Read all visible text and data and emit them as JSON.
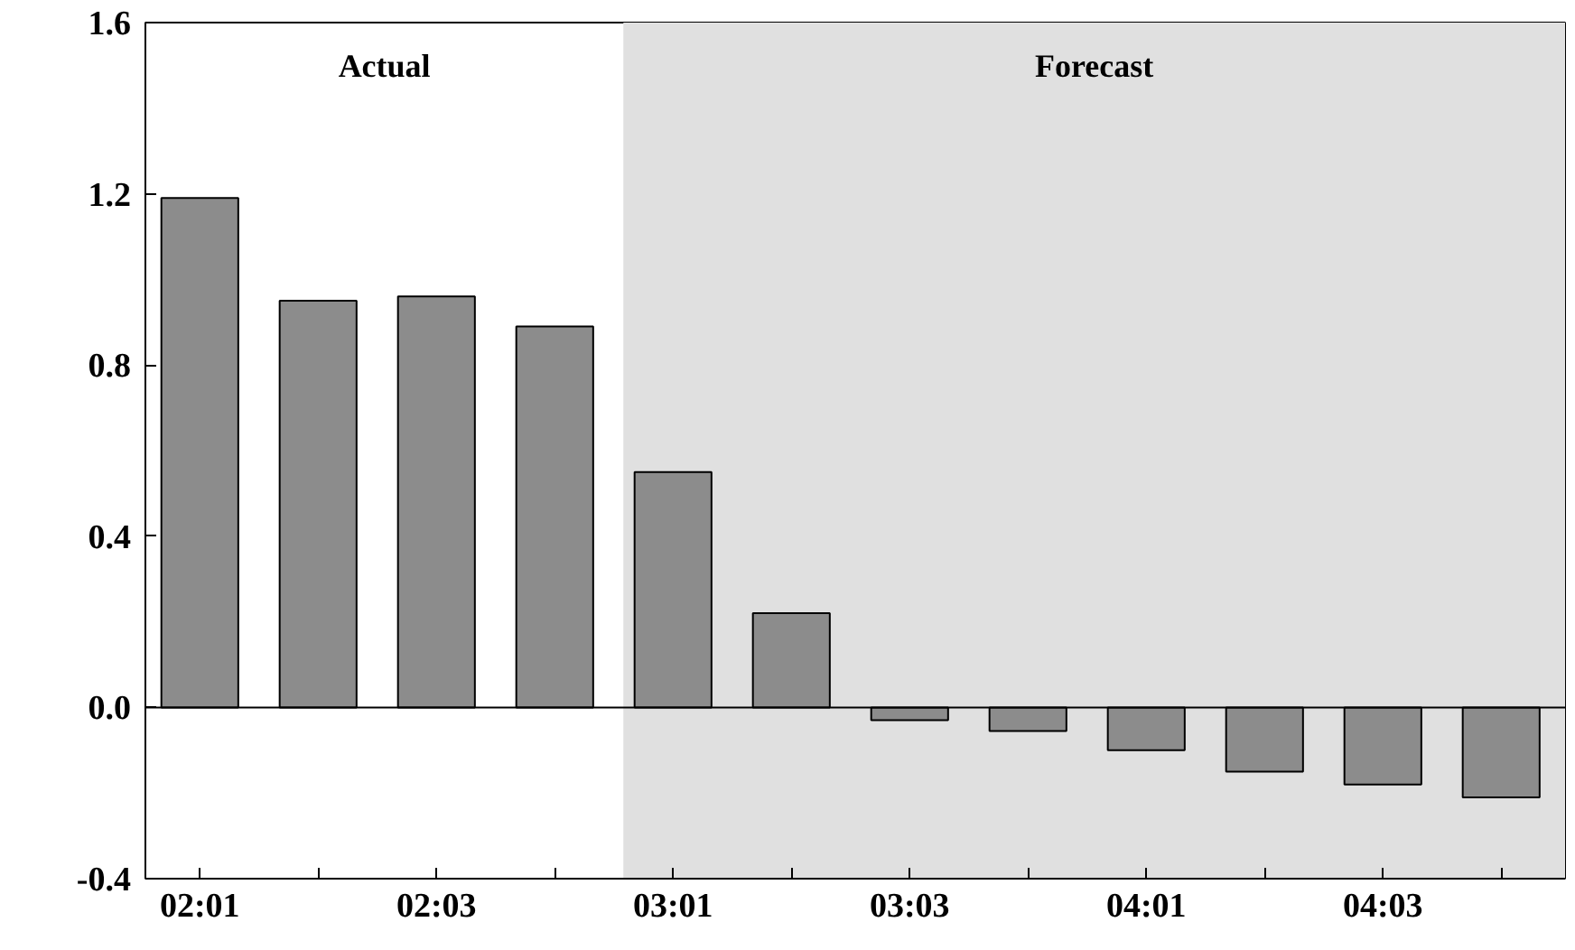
{
  "chart_data": {
    "type": "bar",
    "categories": [
      "02:01",
      null,
      "02:03",
      null,
      "03:01",
      null,
      "03:03",
      null,
      "04:01",
      null,
      "04:03",
      null
    ],
    "values": [
      1.19,
      0.95,
      0.96,
      0.89,
      0.55,
      0.22,
      -0.03,
      -0.055,
      -0.1,
      -0.15,
      -0.18,
      -0.21
    ],
    "color": "#8c8c8c",
    "ylim": [
      -0.4,
      1.6
    ],
    "yticks": [
      {
        "value": -0.4,
        "label": "-0.4"
      },
      {
        "value": 0,
        "label": "0.0"
      },
      0.4,
      0.8,
      1.2,
      1.6
    ],
    "grid": false,
    "ref_lines": [
      {
        "axis": "y",
        "value": 0,
        "color": "#000000"
      }
    ],
    "annotations": [
      "Actual",
      "Forecast"
    ]
  }
}
